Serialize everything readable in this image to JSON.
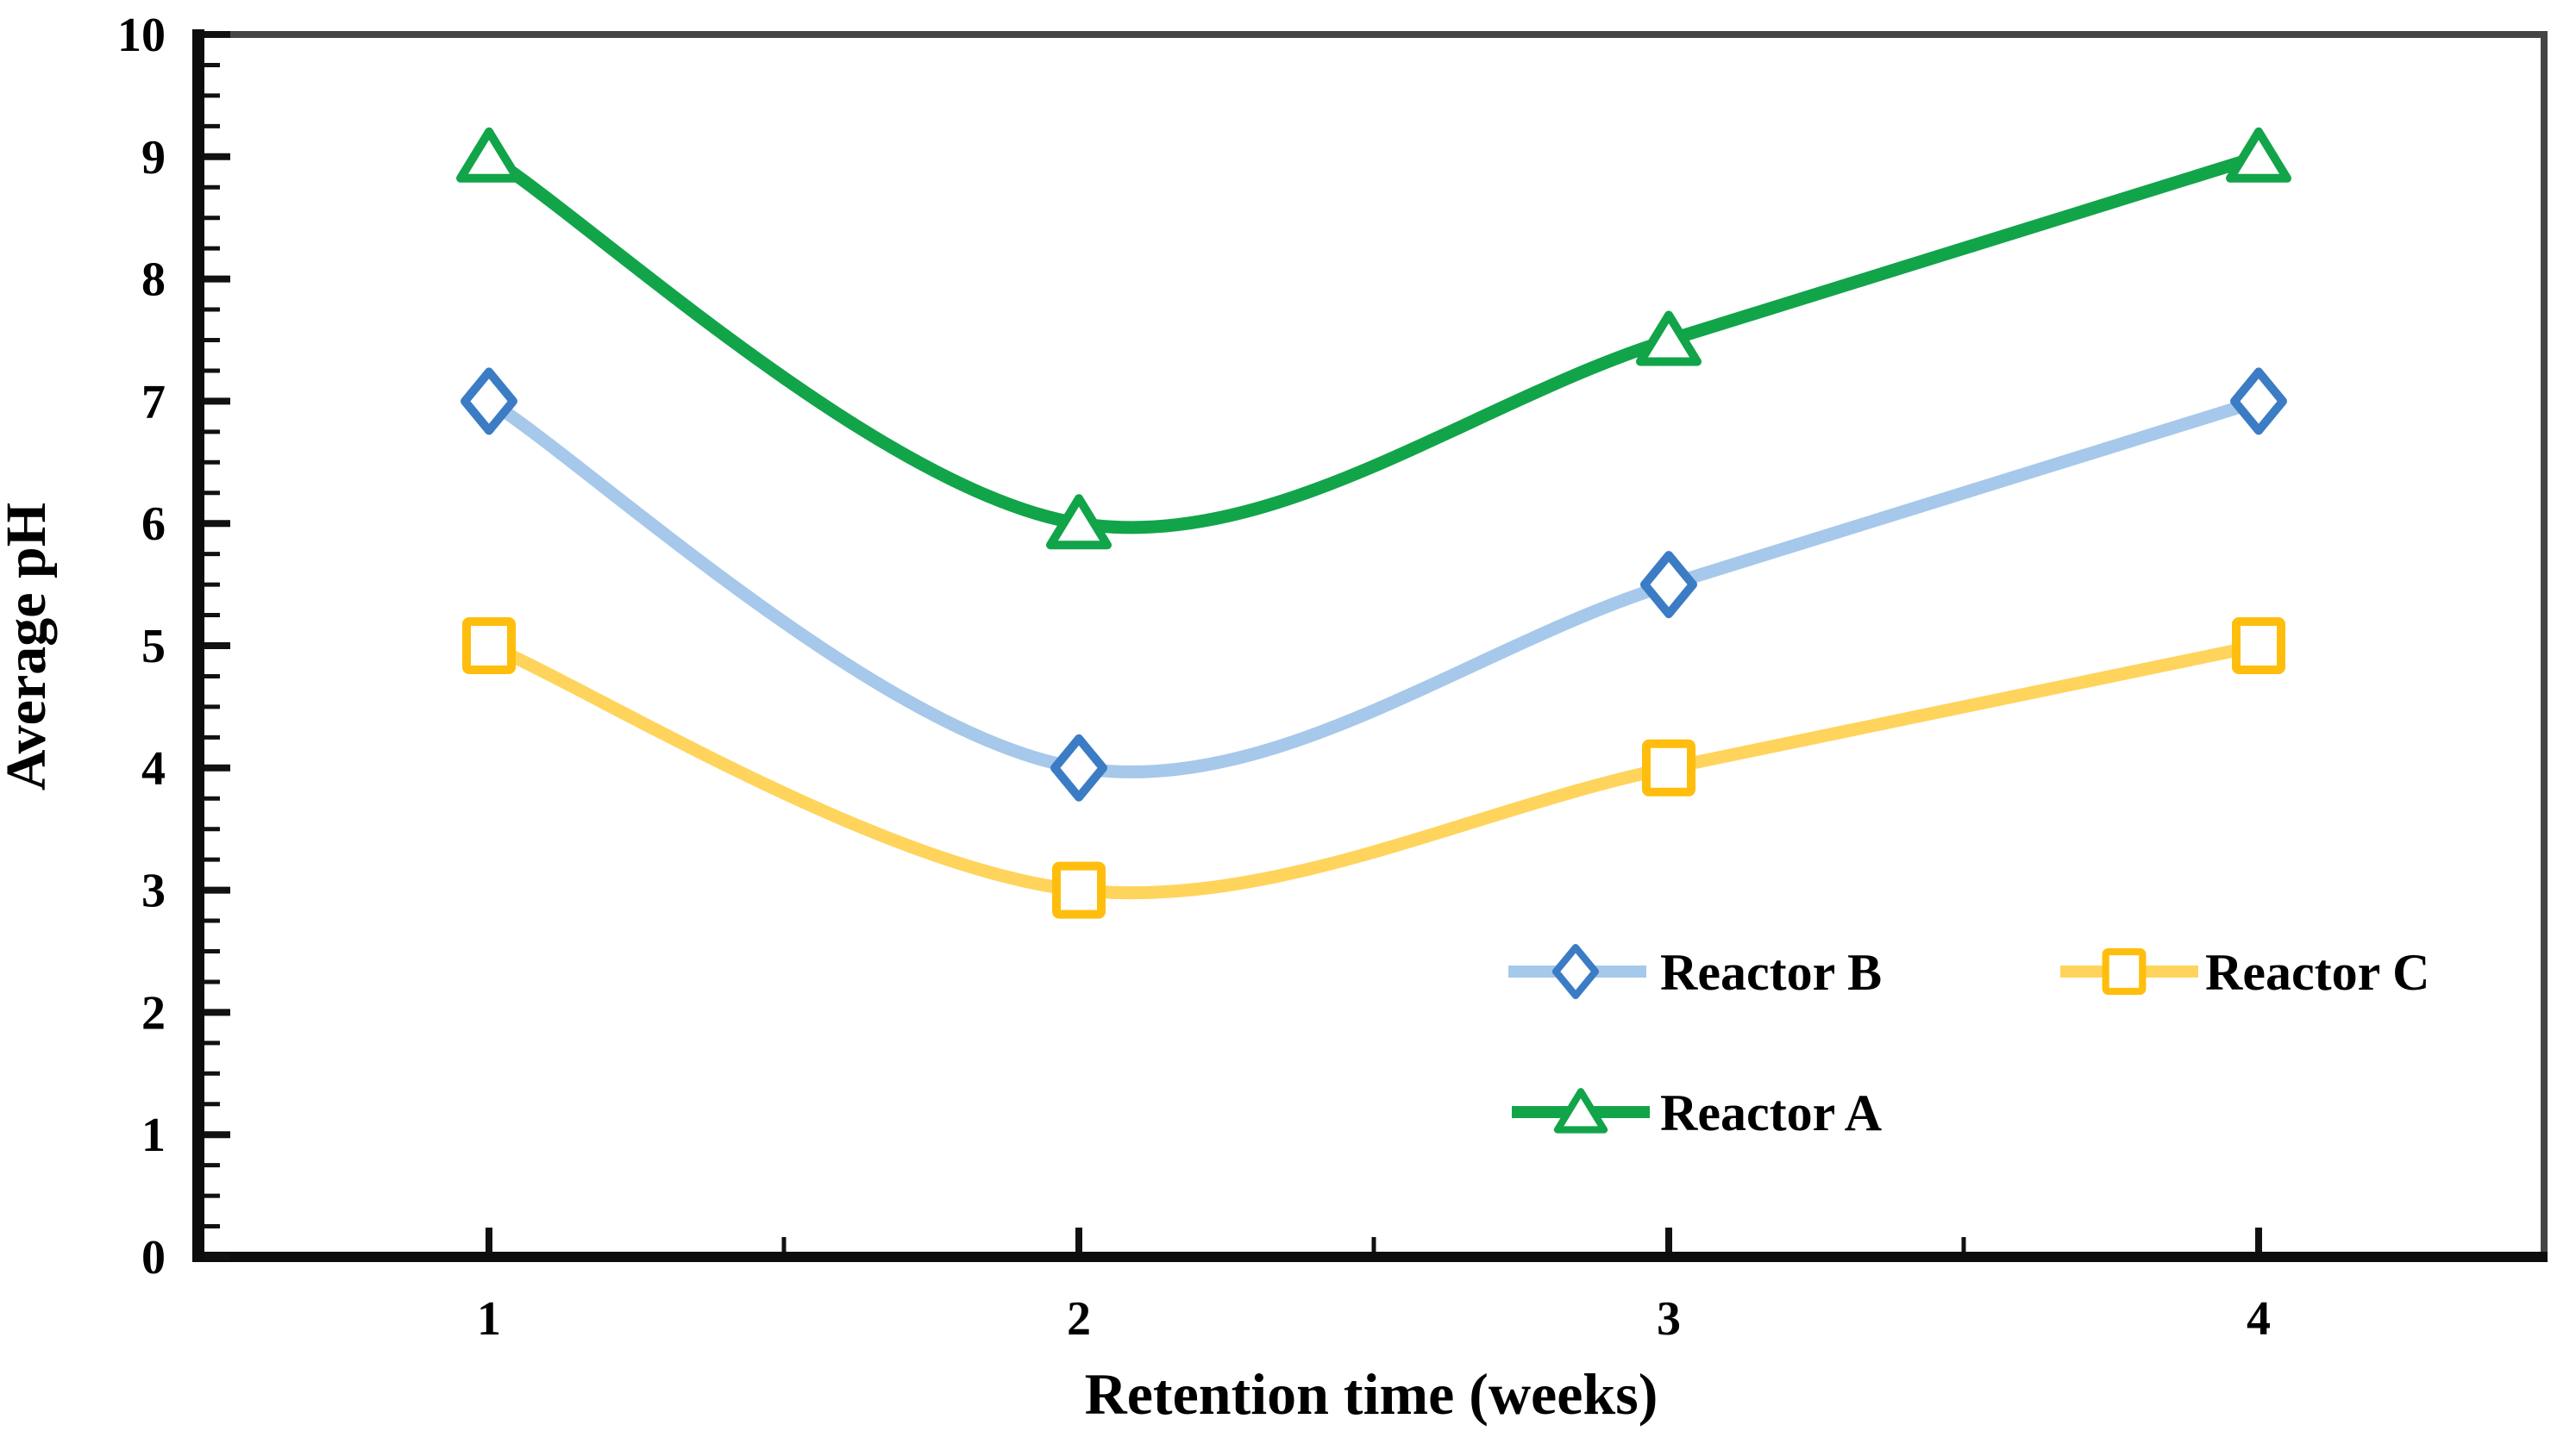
{
  "chart_data": {
    "type": "line",
    "title": "",
    "xlabel": "Retention time (weeks)",
    "ylabel": "Average pH",
    "x": [
      1,
      2,
      3,
      4
    ],
    "x_tick_labels": [
      "1",
      "2",
      "3",
      "4"
    ],
    "y_tick_labels": [
      "0",
      "1",
      "2",
      "3",
      "4",
      "5",
      "6",
      "7",
      "8",
      "9",
      "10"
    ],
    "ylim": [
      0,
      10
    ],
    "xlim": [
      0.5,
      4.47
    ],
    "y_major_tick_step": 1,
    "y_minor_tick_step": 0.25,
    "x_major_tick_step": 1,
    "x_minor_tick_step": 0.5,
    "grid": false,
    "line_style": "smooth",
    "legend_position": "inside-bottom-right",
    "legend_order": [
      "Reactor B",
      "Reactor C",
      "Reactor A"
    ],
    "series": [
      {
        "name": "Reactor A",
        "values": [
          9,
          6,
          7.5,
          9
        ],
        "marker": "triangle",
        "line_color": "#12A449",
        "marker_color": "#12A449"
      },
      {
        "name": "Reactor B",
        "values": [
          7,
          4,
          5.5,
          7
        ],
        "marker": "diamond",
        "line_color": "#A6C8EA",
        "marker_color": "#3B7CC5"
      },
      {
        "name": "Reactor C",
        "values": [
          5,
          3,
          4,
          5
        ],
        "marker": "square",
        "line_color": "#FFD45C",
        "marker_color": "#FFBE0D"
      }
    ],
    "colors": {
      "axis_spine": "#0d0d0d",
      "frame": "#454545",
      "tick": "#111111",
      "text": "#000000",
      "plot_background": "#ffffff"
    }
  }
}
